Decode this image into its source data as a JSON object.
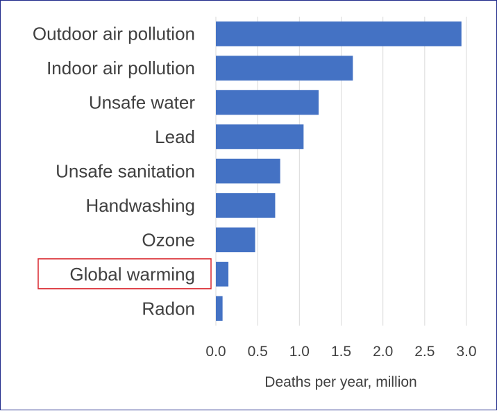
{
  "chart_data": {
    "type": "bar",
    "orientation": "horizontal",
    "categories": [
      "Outdoor air pollution",
      "Indoor air pollution",
      "Unsafe water",
      "Lead",
      "Unsafe sanitation",
      "Handwashing",
      "Ozone",
      "Global warming",
      "Radon"
    ],
    "values": [
      2.94,
      1.64,
      1.23,
      1.05,
      0.77,
      0.71,
      0.47,
      0.15,
      0.08
    ],
    "xlabel": "Deaths per year, million",
    "ylabel": "",
    "xlim": [
      0,
      3.0
    ],
    "ticks": [
      "0.0",
      "0.5",
      "1.0",
      "1.5",
      "2.0",
      "2.5",
      "3.0"
    ],
    "highlighted_category": "Global warming",
    "grid": true,
    "bar_color": "#4472c4",
    "grid_color": "#d9d9d9",
    "highlight_color": "#d9272e"
  }
}
